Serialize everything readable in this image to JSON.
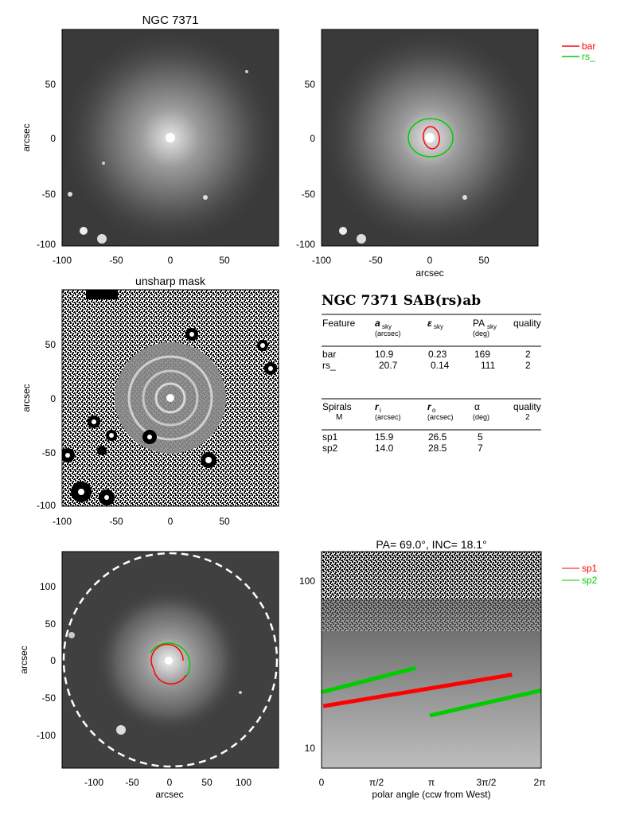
{
  "panels": {
    "galaxy": {
      "title": "NGC 7371",
      "ylabel": "arcsec",
      "x_ticks": [
        "-100",
        "-50",
        "0",
        "50"
      ],
      "y_ticks": [
        "50",
        "0",
        "-50",
        "-100"
      ]
    },
    "overlay": {
      "xlabel": "arcsec",
      "x_ticks": [
        "-100",
        "-50",
        "0",
        "50"
      ],
      "y_ticks": [
        "50",
        "0",
        "-50",
        "-100"
      ],
      "legend": [
        {
          "label": "bar",
          "color": "#ff0000"
        },
        {
          "label": "rs_",
          "color": "#00cc00"
        }
      ]
    },
    "unsharp": {
      "title": "unsharp mask",
      "ylabel": "arcsec",
      "x_ticks": [
        "-100",
        "-50",
        "0",
        "50"
      ],
      "y_ticks": [
        "50",
        "0",
        "-50",
        "-100"
      ]
    },
    "table": {
      "heading": "NGC 7371  SAB(rs)ab",
      "features_header": {
        "feature": "Feature",
        "a": "a",
        "a_sub": "sky",
        "a_unit": "(arcsec)",
        "eps": "ε",
        "eps_sub": "sky",
        "pa": "PA",
        "pa_sub": "sky",
        "pa_unit": "(deg)",
        "quality": "quality"
      },
      "features": [
        {
          "name": "bar",
          "a": "10.9",
          "eps": "0.23",
          "pa": "169",
          "q": "2"
        },
        {
          "name": "rs_",
          "a": "20.7",
          "eps": "0.14",
          "pa": "111",
          "q": "2"
        }
      ],
      "spirals_header": {
        "spirals": "Spirals",
        "m": "M",
        "ri": "r",
        "ri_sub": "i",
        "ri_unit": "(arcsec)",
        "ro": "r",
        "ro_sub": "o",
        "ro_unit": "(arcsec)",
        "alpha": "α",
        "alpha_unit": "(deg)",
        "quality": "quality",
        "quality_value": "2"
      },
      "spirals": [
        {
          "name": "sp1",
          "ri": "15.9",
          "ro": "26.5",
          "alpha": "5"
        },
        {
          "name": "sp2",
          "ri": "14.0",
          "ro": "28.5",
          "alpha": "7"
        }
      ]
    },
    "deproj": {
      "xlabel": "arcsec",
      "ylabel": "arcsec",
      "x_ticks": [
        "-100",
        "-50",
        "0",
        "50",
        "100"
      ],
      "y_ticks": [
        "100",
        "50",
        "0",
        "-50",
        "-100"
      ]
    },
    "polar": {
      "title": "PA= 69.0°, INC= 18.1°",
      "xlabel": "polar angle (ccw from West)",
      "x_ticks": [
        "0",
        "π/2",
        "π",
        "3π/2",
        "2π"
      ],
      "y_ticks": [
        "100",
        "10"
      ],
      "legend": [
        {
          "label": "sp1",
          "color": "#ff0000"
        },
        {
          "label": "sp2",
          "color": "#00cc00"
        }
      ]
    }
  },
  "chart_data": {
    "type": "line",
    "title": "PA= 69.0°, INC= 18.1°",
    "xlabel": "polar angle (ccw from West)",
    "ylabel": "",
    "yscale": "log",
    "xlim": [
      0,
      6.2832
    ],
    "ylim": [
      7,
      140
    ],
    "series": [
      {
        "name": "sp1",
        "color": "#ff0000",
        "x": [
          0.05,
          5.45
        ],
        "y": [
          16.5,
          25.5
        ]
      },
      {
        "name": "sp2",
        "color": "#00cc00",
        "segments": [
          {
            "x": [
              0.0,
              2.7
            ],
            "y": [
              20.0,
              28.0
            ]
          },
          {
            "x": [
              3.1,
              6.2832
            ],
            "y": [
              14.5,
              20.5
            ]
          }
        ]
      }
    ]
  }
}
